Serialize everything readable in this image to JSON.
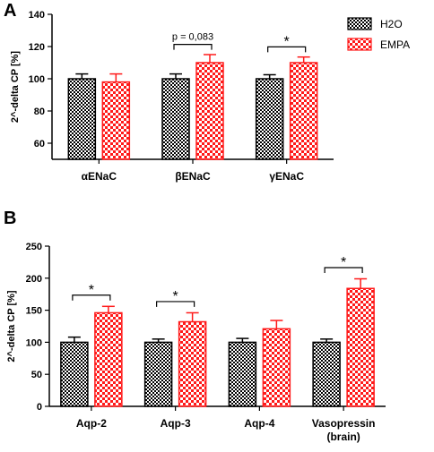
{
  "colors": {
    "h2o": "#000000",
    "empa": "#ff1a1a"
  },
  "legend": [
    {
      "label": "H2O",
      "key": "h2o"
    },
    {
      "label": "EMPA",
      "key": "empa"
    }
  ],
  "chart_data": [
    {
      "panel": "A",
      "type": "bar",
      "ylabel": "2^-delta CP [%]",
      "ylim": [
        50,
        140
      ],
      "yticks": [
        "60",
        "80",
        "100",
        "120",
        "140"
      ],
      "categories": [
        "αENaC",
        "βENaC",
        "γENaC"
      ],
      "series": [
        {
          "name": "H2O",
          "values": [
            100,
            100,
            100
          ],
          "errors": [
            3,
            3,
            2.5
          ]
        },
        {
          "name": "EMPA",
          "values": [
            98,
            110,
            110
          ],
          "errors": [
            5,
            5,
            3.5
          ]
        }
      ],
      "annotations": [
        "",
        "p = 0,083",
        "*"
      ]
    },
    {
      "panel": "B",
      "type": "bar",
      "ylabel": "2^-delta CP [%]",
      "ylim": [
        0,
        250
      ],
      "yticks": [
        "0",
        "50",
        "100",
        "150",
        "200",
        "250"
      ],
      "categories": [
        "Aqp-2",
        "Aqp-3",
        "Aqp-4",
        "Vasopressin\n(brain)"
      ],
      "series": [
        {
          "name": "H2O",
          "values": [
            100,
            100,
            100,
            100
          ],
          "errors": [
            8,
            5,
            6,
            5
          ]
        },
        {
          "name": "EMPA",
          "values": [
            146,
            132,
            121,
            184
          ],
          "errors": [
            10,
            14,
            13,
            15
          ]
        }
      ],
      "annotations": [
        "*",
        "*",
        "",
        "*"
      ]
    }
  ]
}
